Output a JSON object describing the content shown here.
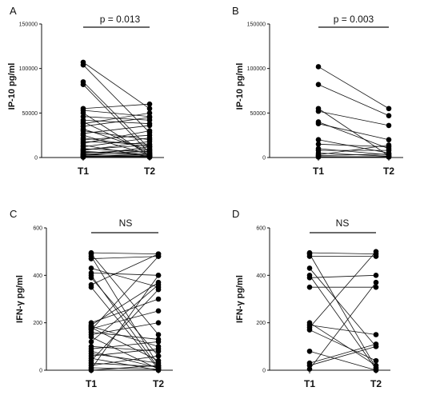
{
  "chart_data": [
    {
      "type": "scatter",
      "panel": "A",
      "ylabel": "IP-10 pg/ml",
      "categories": [
        "T1",
        "T2"
      ],
      "ylim": [
        0,
        150000
      ],
      "yticks": [
        0,
        50000,
        100000,
        150000
      ],
      "significance": "p = 0.013",
      "pairs": [
        [
          107000,
          55000
        ],
        [
          104000,
          28000
        ],
        [
          85000,
          10000
        ],
        [
          82000,
          5000
        ],
        [
          55000,
          60000
        ],
        [
          53000,
          46000
        ],
        [
          50000,
          2000
        ],
        [
          46000,
          42000
        ],
        [
          42000,
          38000
        ],
        [
          40000,
          5000
        ],
        [
          38000,
          50000
        ],
        [
          35000,
          45000
        ],
        [
          32000,
          8000
        ],
        [
          30000,
          20000
        ],
        [
          27000,
          36000
        ],
        [
          25000,
          3000
        ],
        [
          22000,
          12000
        ],
        [
          20000,
          25000
        ],
        [
          18000,
          15000
        ],
        [
          16000,
          30000
        ],
        [
          14000,
          1000
        ],
        [
          12000,
          22000
        ],
        [
          10000,
          6000
        ],
        [
          9000,
          14000
        ],
        [
          8000,
          18000
        ],
        [
          7000,
          2500
        ],
        [
          6000,
          4000
        ],
        [
          5000,
          9000
        ],
        [
          4000,
          500
        ],
        [
          3500,
          7000
        ],
        [
          3000,
          1500
        ],
        [
          2500,
          3000
        ],
        [
          2000,
          12000
        ],
        [
          1500,
          1000
        ],
        [
          1000,
          2000
        ],
        [
          800,
          500
        ],
        [
          600,
          300
        ],
        [
          400,
          800
        ]
      ]
    },
    {
      "type": "scatter",
      "panel": "B",
      "ylabel": "IP-10 pg/ml",
      "categories": [
        "T1",
        "T2"
      ],
      "ylim": [
        0,
        150000
      ],
      "yticks": [
        0,
        50000,
        100000,
        150000
      ],
      "significance": "p = 0.003",
      "pairs": [
        [
          102000,
          55000
        ],
        [
          82000,
          47000
        ],
        [
          55000,
          2000
        ],
        [
          52000,
          36000
        ],
        [
          40000,
          10000
        ],
        [
          38000,
          20000
        ],
        [
          20000,
          5000
        ],
        [
          15000,
          12000
        ],
        [
          10000,
          3000
        ],
        [
          8000,
          8000
        ],
        [
          5000,
          1500
        ],
        [
          3000,
          14000
        ],
        [
          2000,
          4000
        ],
        [
          1000,
          500
        ],
        [
          500,
          1000
        ]
      ]
    },
    {
      "type": "scatter",
      "panel": "C",
      "ylabel": "IFN-γ pg/ml",
      "categories": [
        "T1",
        "T2"
      ],
      "ylim": [
        0,
        600
      ],
      "yticks": [
        0,
        200,
        400,
        600
      ],
      "significance": "NS",
      "pairs": [
        [
          495,
          490
        ],
        [
          490,
          150
        ],
        [
          480,
          20
        ],
        [
          470,
          480
        ],
        [
          430,
          350
        ],
        [
          410,
          400
        ],
        [
          400,
          10
        ],
        [
          390,
          60
        ],
        [
          360,
          490
        ],
        [
          350,
          5
        ],
        [
          200,
          300
        ],
        [
          190,
          370
        ],
        [
          185,
          100
        ],
        [
          180,
          40
        ],
        [
          175,
          250
        ],
        [
          170,
          480
        ],
        [
          160,
          130
        ],
        [
          150,
          200
        ],
        [
          140,
          5
        ],
        [
          120,
          360
        ],
        [
          100,
          80
        ],
        [
          90,
          120
        ],
        [
          80,
          10
        ],
        [
          70,
          30
        ],
        [
          60,
          90
        ],
        [
          50,
          0
        ],
        [
          40,
          340
        ],
        [
          30,
          15
        ],
        [
          20,
          60
        ],
        [
          10,
          5
        ],
        [
          5,
          400
        ],
        [
          0,
          20
        ]
      ]
    },
    {
      "type": "scatter",
      "panel": "D",
      "ylabel": "IFN-γ pg/ml",
      "categories": [
        "T1",
        "T2"
      ],
      "ylim": [
        0,
        600
      ],
      "yticks": [
        0,
        200,
        400,
        600
      ],
      "significance": "NS",
      "pairs": [
        [
          495,
          490
        ],
        [
          490,
          10
        ],
        [
          480,
          480
        ],
        [
          430,
          100
        ],
        [
          400,
          5
        ],
        [
          390,
          400
        ],
        [
          350,
          350
        ],
        [
          200,
          20
        ],
        [
          190,
          150
        ],
        [
          180,
          500
        ],
        [
          170,
          40
        ],
        [
          80,
          0
        ],
        [
          30,
          110
        ],
        [
          20,
          100
        ],
        [
          5,
          370
        ]
      ]
    }
  ]
}
